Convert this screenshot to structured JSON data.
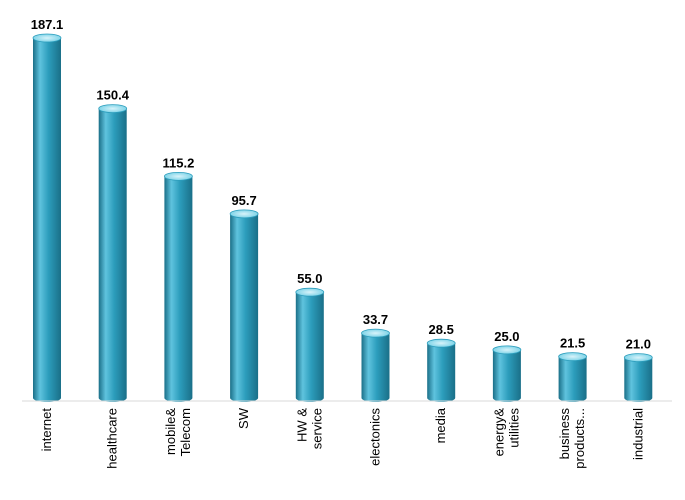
{
  "chart_data": {
    "type": "bar",
    "style": "3d-cylinder",
    "title": "",
    "xlabel": "",
    "ylabel": "",
    "categories": [
      [
        "internet"
      ],
      [
        "healthcare"
      ],
      [
        "mobile&",
        "Telecom"
      ],
      [
        "SW"
      ],
      [
        "HW &",
        "service"
      ],
      [
        "electonics"
      ],
      [
        "media"
      ],
      [
        "energy&",
        "utilities"
      ],
      [
        "business",
        "products..."
      ],
      [
        "industrial"
      ]
    ],
    "values": [
      187.1,
      150.4,
      115.2,
      95.7,
      55.0,
      33.7,
      28.5,
      25.0,
      21.5,
      21.0
    ],
    "value_labels": [
      "187.1",
      "150.4",
      "115.2",
      "95.7",
      "55.0",
      "33.7",
      "28.5",
      "25.0",
      "21.5",
      "21.0"
    ],
    "ylim": [
      0,
      187.1
    ],
    "grid": false,
    "legend": "none",
    "colors": {
      "bar_body": "#2c9dbc",
      "bar_top": "#7fd4e8",
      "bar_shadow": "#1a6f88",
      "bar_highlight": "#5fc3de"
    }
  }
}
